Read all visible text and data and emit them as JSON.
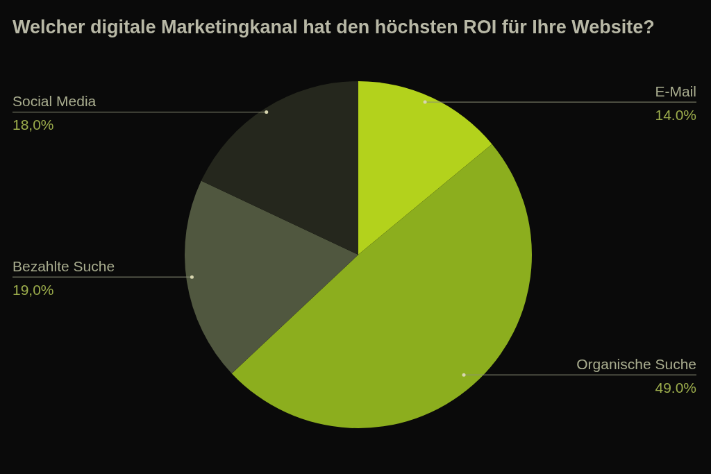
{
  "chart_data": {
    "type": "pie",
    "title": "Welcher digitale Marketingkanal hat den höchsten ROI für Ihre Website?",
    "categories": [
      "E-Mail",
      "Organische Suche",
      "Bezahlte Suche",
      "Social Media"
    ],
    "values": [
      14,
      49,
      19,
      18
    ],
    "colors": [
      "#b3d21c",
      "#8cae1e",
      "#50573f",
      "#25271d"
    ],
    "value_labels": [
      "14.0%",
      "49.0%",
      "19,0%",
      "18,0%"
    ]
  }
}
